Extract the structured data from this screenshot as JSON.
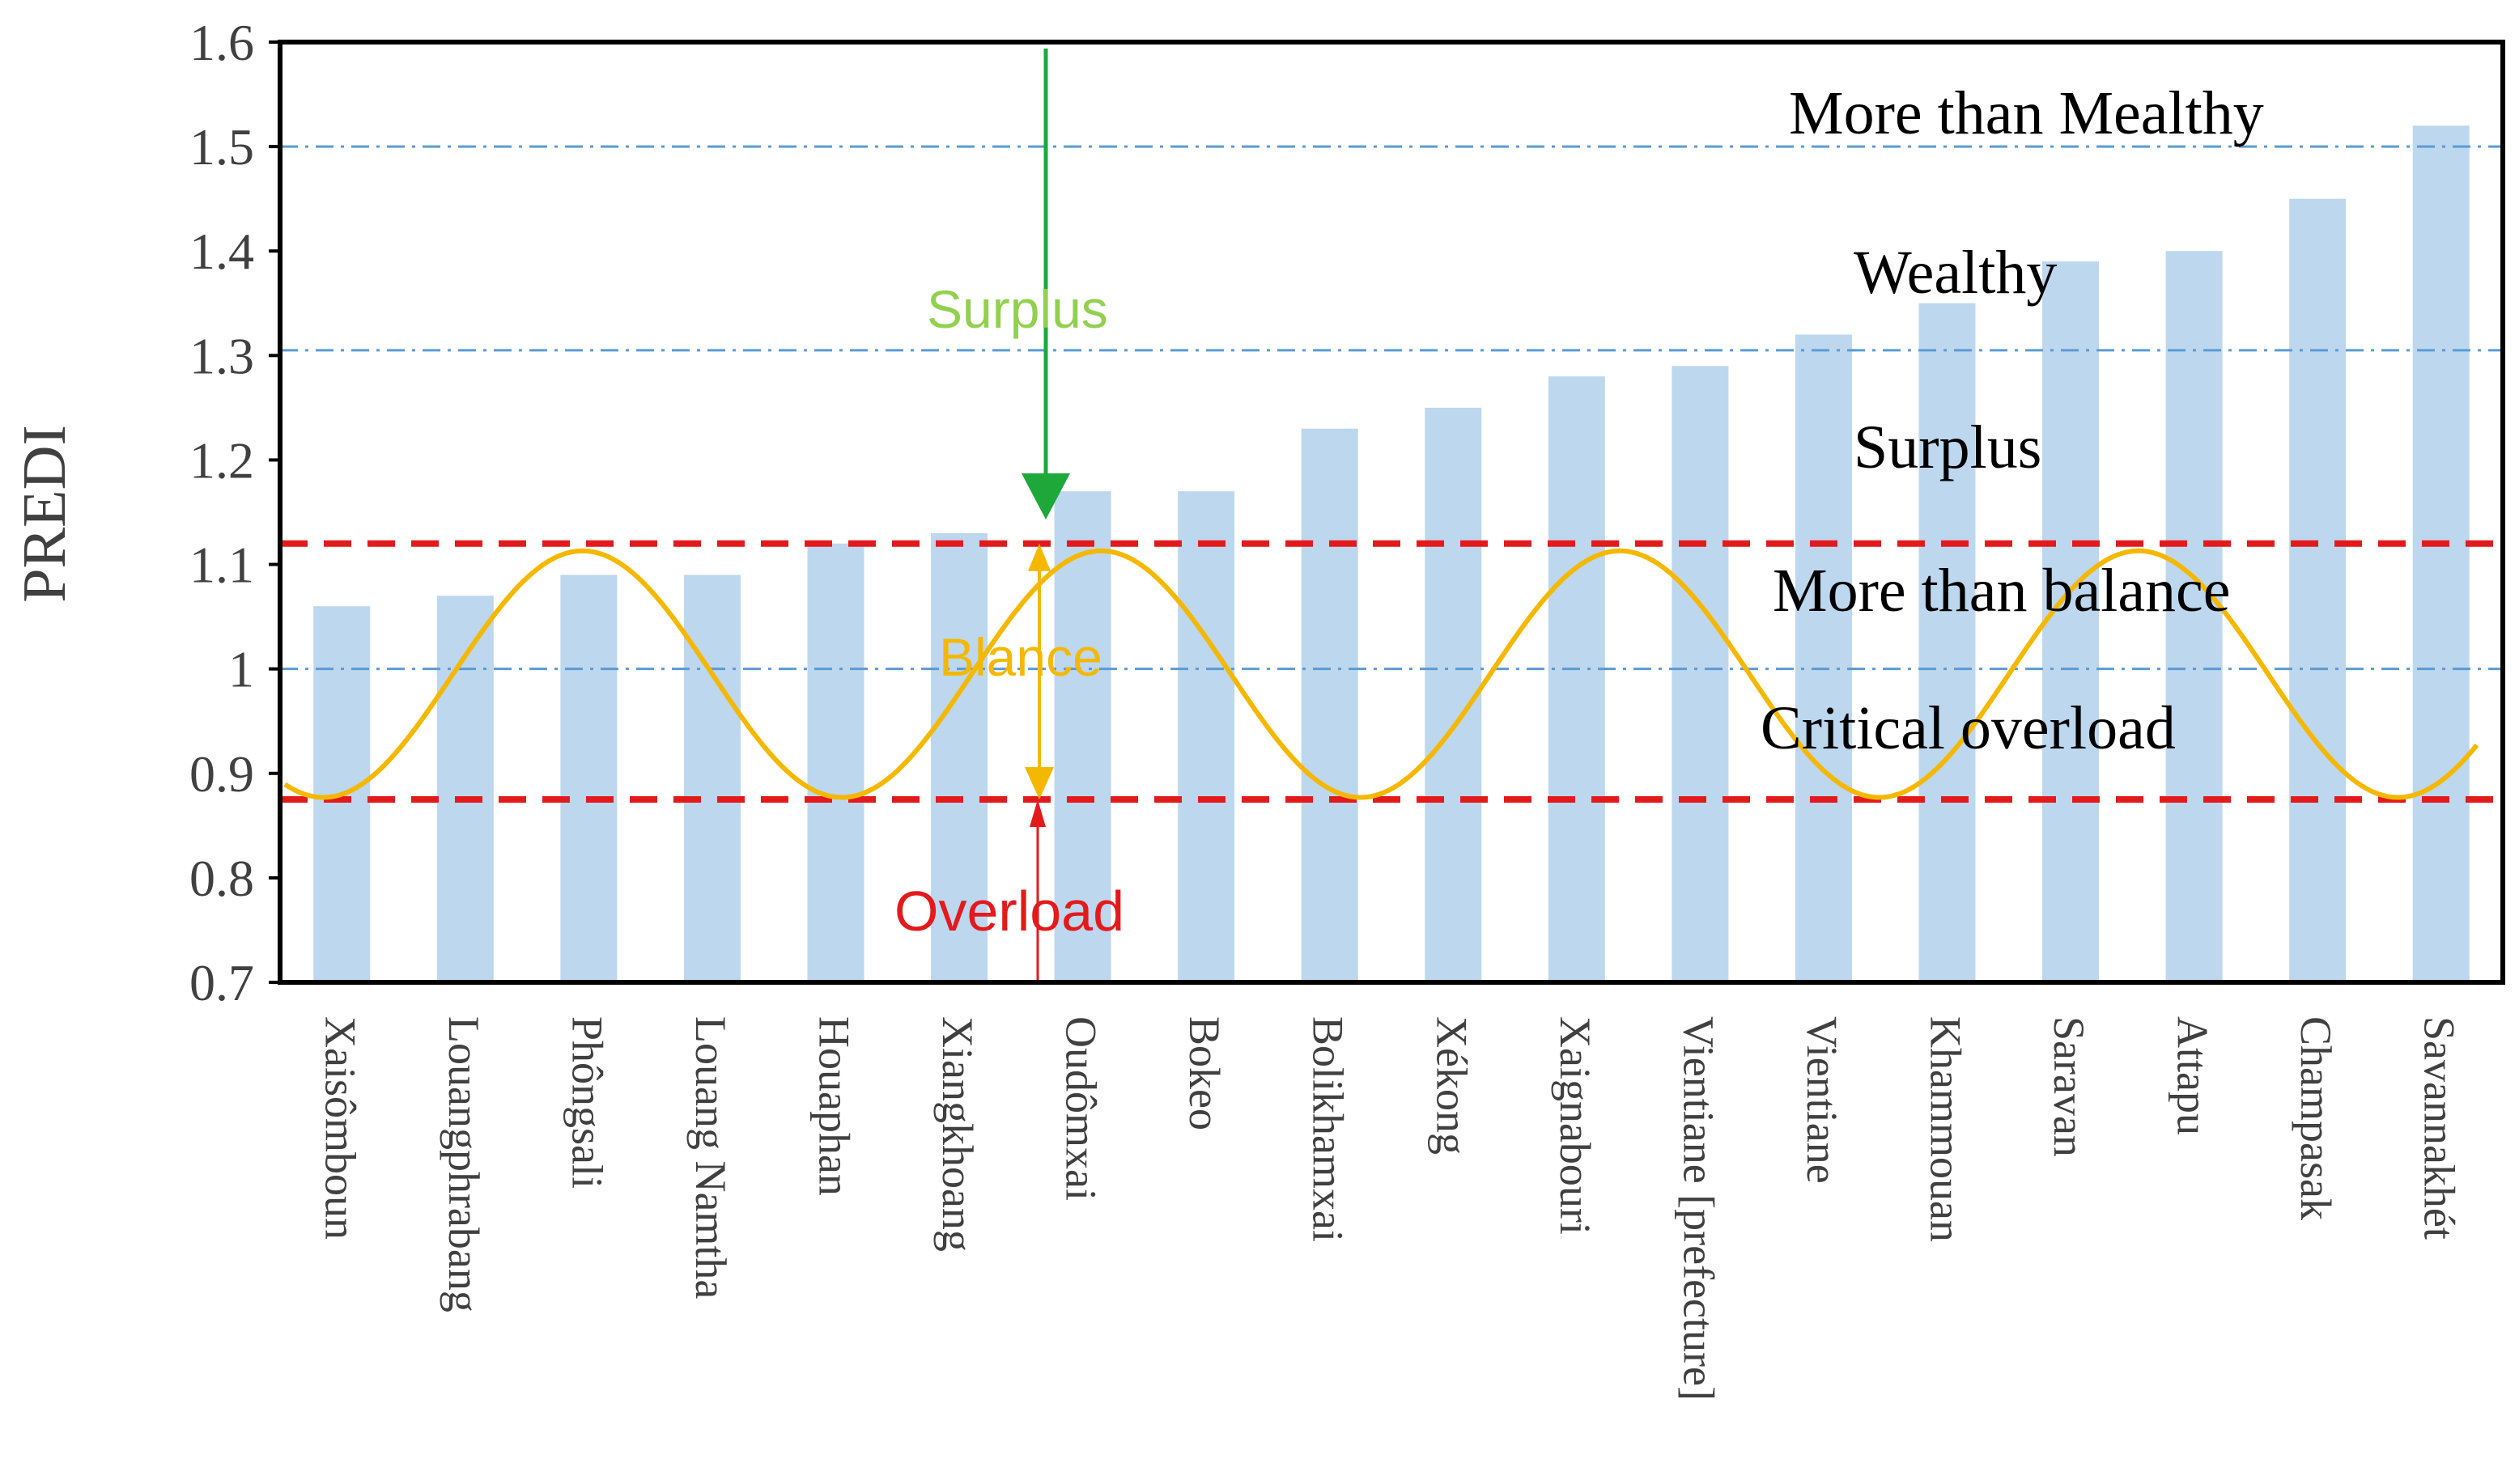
{
  "chart_data": {
    "type": "bar",
    "ylabel": "PREDI",
    "ylim": [
      0.7,
      1.6
    ],
    "y_ticks": [
      "0.7",
      "0.8",
      "0.9",
      "1",
      "1.1",
      "1.2",
      "1.3",
      "1.4",
      "1.5",
      "1.6"
    ],
    "y_tick_values": [
      0.7,
      0.8,
      0.9,
      1.0,
      1.1,
      1.2,
      1.3,
      1.4,
      1.5,
      1.6
    ],
    "categories": [
      "Xaisômboun",
      "Louangphrabang",
      "Phôngsali",
      "Louang Namtha",
      "Houaphan",
      "Xiangkhoang",
      "Oudômxai",
      "Bokeo",
      "Bolikhamxai",
      "Xékong",
      "Xaignabouri",
      "Vientiane [prefecture]",
      "Vientiane",
      "Khammouan",
      "Saravan",
      "Attapu",
      "Champasak",
      "Savannakhét"
    ],
    "values": [
      1.06,
      1.07,
      1.09,
      1.09,
      1.12,
      1.13,
      1.17,
      1.17,
      1.23,
      1.25,
      1.28,
      1.29,
      1.32,
      1.35,
      1.39,
      1.4,
      1.45,
      1.52
    ],
    "bar_color": "#bdd7ee",
    "thresholds": {
      "dash_dot_blue": [
        1.0,
        1.305,
        1.5
      ],
      "dashed_red": [
        0.875,
        1.12
      ]
    },
    "wave": {
      "center": 0.995,
      "amplitude": 0.118,
      "period_bars": 4.2,
      "phase_bar": 1.95
    },
    "zone_labels": [
      "More than Mealthy",
      "Wealthy",
      "Surplus",
      "More than balance",
      "Critical overload"
    ],
    "annotations": {
      "surplus": "Surplus",
      "balance": "Blance",
      "overload": "Overload"
    },
    "colors": {
      "bar": "#bdd7ee",
      "dash_dot": "#5b9bd5",
      "red_dash": "#e31a1c",
      "wave": "#f5b800",
      "green": "#1ea83a",
      "surplus_text": "#92d050",
      "balance_text": "#f5b800",
      "overload_text": "#e31a1c",
      "axis": "#000000",
      "tick_text": "#404040"
    }
  }
}
